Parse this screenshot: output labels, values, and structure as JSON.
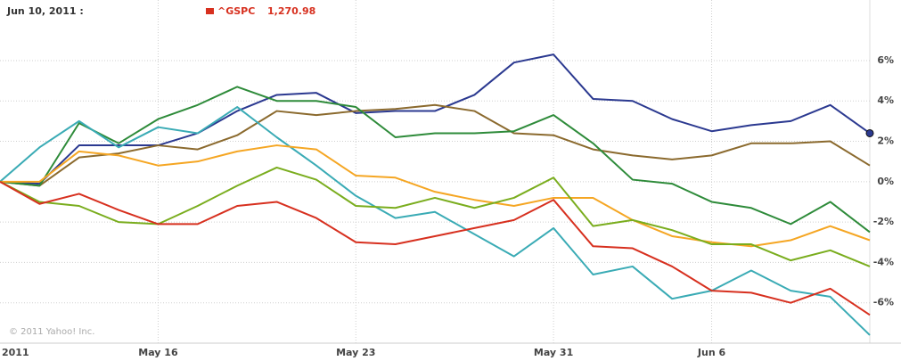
{
  "chart_data": {
    "type": "line",
    "header_date": "Jun 10, 2011 :",
    "quote_label": "1,270.98",
    "watermark": "© 2011 Yahoo! Inc.",
    "categories": [
      "2011",
      null,
      null,
      null,
      "May 16",
      null,
      null,
      null,
      null,
      "May 23",
      null,
      null,
      null,
      null,
      "May 31",
      null,
      null,
      null,
      "Jun 6",
      null,
      null,
      null,
      null
    ],
    "ylim": [
      -8,
      9
    ],
    "yticks": [
      {
        "value": -6,
        "label": "-6%"
      },
      {
        "value": -4,
        "label": "-4%"
      },
      {
        "value": -2,
        "label": "-2%"
      },
      {
        "value": 0,
        "label": "0%"
      },
      {
        "value": 2,
        "label": "2%"
      },
      {
        "value": 4,
        "label": "4%"
      },
      {
        "value": 6,
        "label": "6%"
      }
    ],
    "grid": true,
    "series": [
      {
        "color": "#2b3990",
        "end_marker": true,
        "values": [
          0,
          -0.1,
          1.8,
          1.8,
          1.8,
          2.4,
          3.5,
          4.3,
          4.4,
          3.4,
          3.5,
          3.5,
          4.3,
          5.9,
          6.3,
          4.1,
          4.0,
          3.1,
          2.5,
          2.8,
          3.0,
          3.8,
          2.4
        ]
      },
      {
        "color": "#8b6a2e",
        "values": [
          0,
          -0.2,
          1.2,
          1.4,
          1.8,
          1.6,
          2.3,
          3.5,
          3.3,
          3.5,
          3.6,
          3.8,
          3.5,
          2.4,
          2.3,
          1.6,
          1.3,
          1.1,
          1.3,
          1.9,
          1.9,
          2.0,
          0.8
        ]
      },
      {
        "color": "#2e8b3a",
        "values": [
          0,
          -0.2,
          2.9,
          1.9,
          3.1,
          3.8,
          4.7,
          4.0,
          4.0,
          3.7,
          2.2,
          2.4,
          2.4,
          2.5,
          3.3,
          1.9,
          0.1,
          -0.1,
          -1.0,
          -1.3,
          -2.1,
          -1.0,
          -2.5
        ]
      },
      {
        "color": "#3aabb5",
        "values": [
          0,
          1.7,
          3.0,
          1.7,
          2.7,
          2.4,
          3.7,
          2.2,
          0.8,
          -0.7,
          -1.8,
          -1.5,
          -2.6,
          -3.7,
          -2.3,
          -4.6,
          -4.2,
          -5.8,
          -5.4,
          -4.4,
          -5.4,
          -5.7,
          -7.6
        ]
      },
      {
        "color": "#f5a623",
        "values": [
          0,
          0.0,
          1.5,
          1.3,
          0.8,
          1.0,
          1.5,
          1.8,
          1.6,
          0.3,
          0.2,
          -0.5,
          -0.9,
          -1.2,
          -0.8,
          -0.8,
          -1.9,
          -2.7,
          -3.0,
          -3.2,
          -2.9,
          -2.2,
          -2.9
        ]
      },
      {
        "color": "#7aad1e",
        "values": [
          0,
          -1.0,
          -1.2,
          -2.0,
          -2.1,
          -1.2,
          -0.2,
          0.7,
          0.1,
          -1.2,
          -1.3,
          -0.8,
          -1.3,
          -0.8,
          0.2,
          -2.2,
          -1.9,
          -2.4,
          -3.1,
          -3.1,
          -3.9,
          -3.4,
          -4.2
        ]
      },
      {
        "name": "^GSPC",
        "color": "#d7301f",
        "values": [
          0,
          -1.1,
          -0.6,
          -1.4,
          -2.1,
          -2.1,
          -1.2,
          -1.0,
          -1.8,
          -3.0,
          -3.1,
          -2.7,
          -2.3,
          -1.9,
          -0.9,
          -3.2,
          -3.3,
          -4.2,
          -5.4,
          -5.5,
          -6.0,
          -5.3,
          -6.6
        ]
      }
    ]
  }
}
